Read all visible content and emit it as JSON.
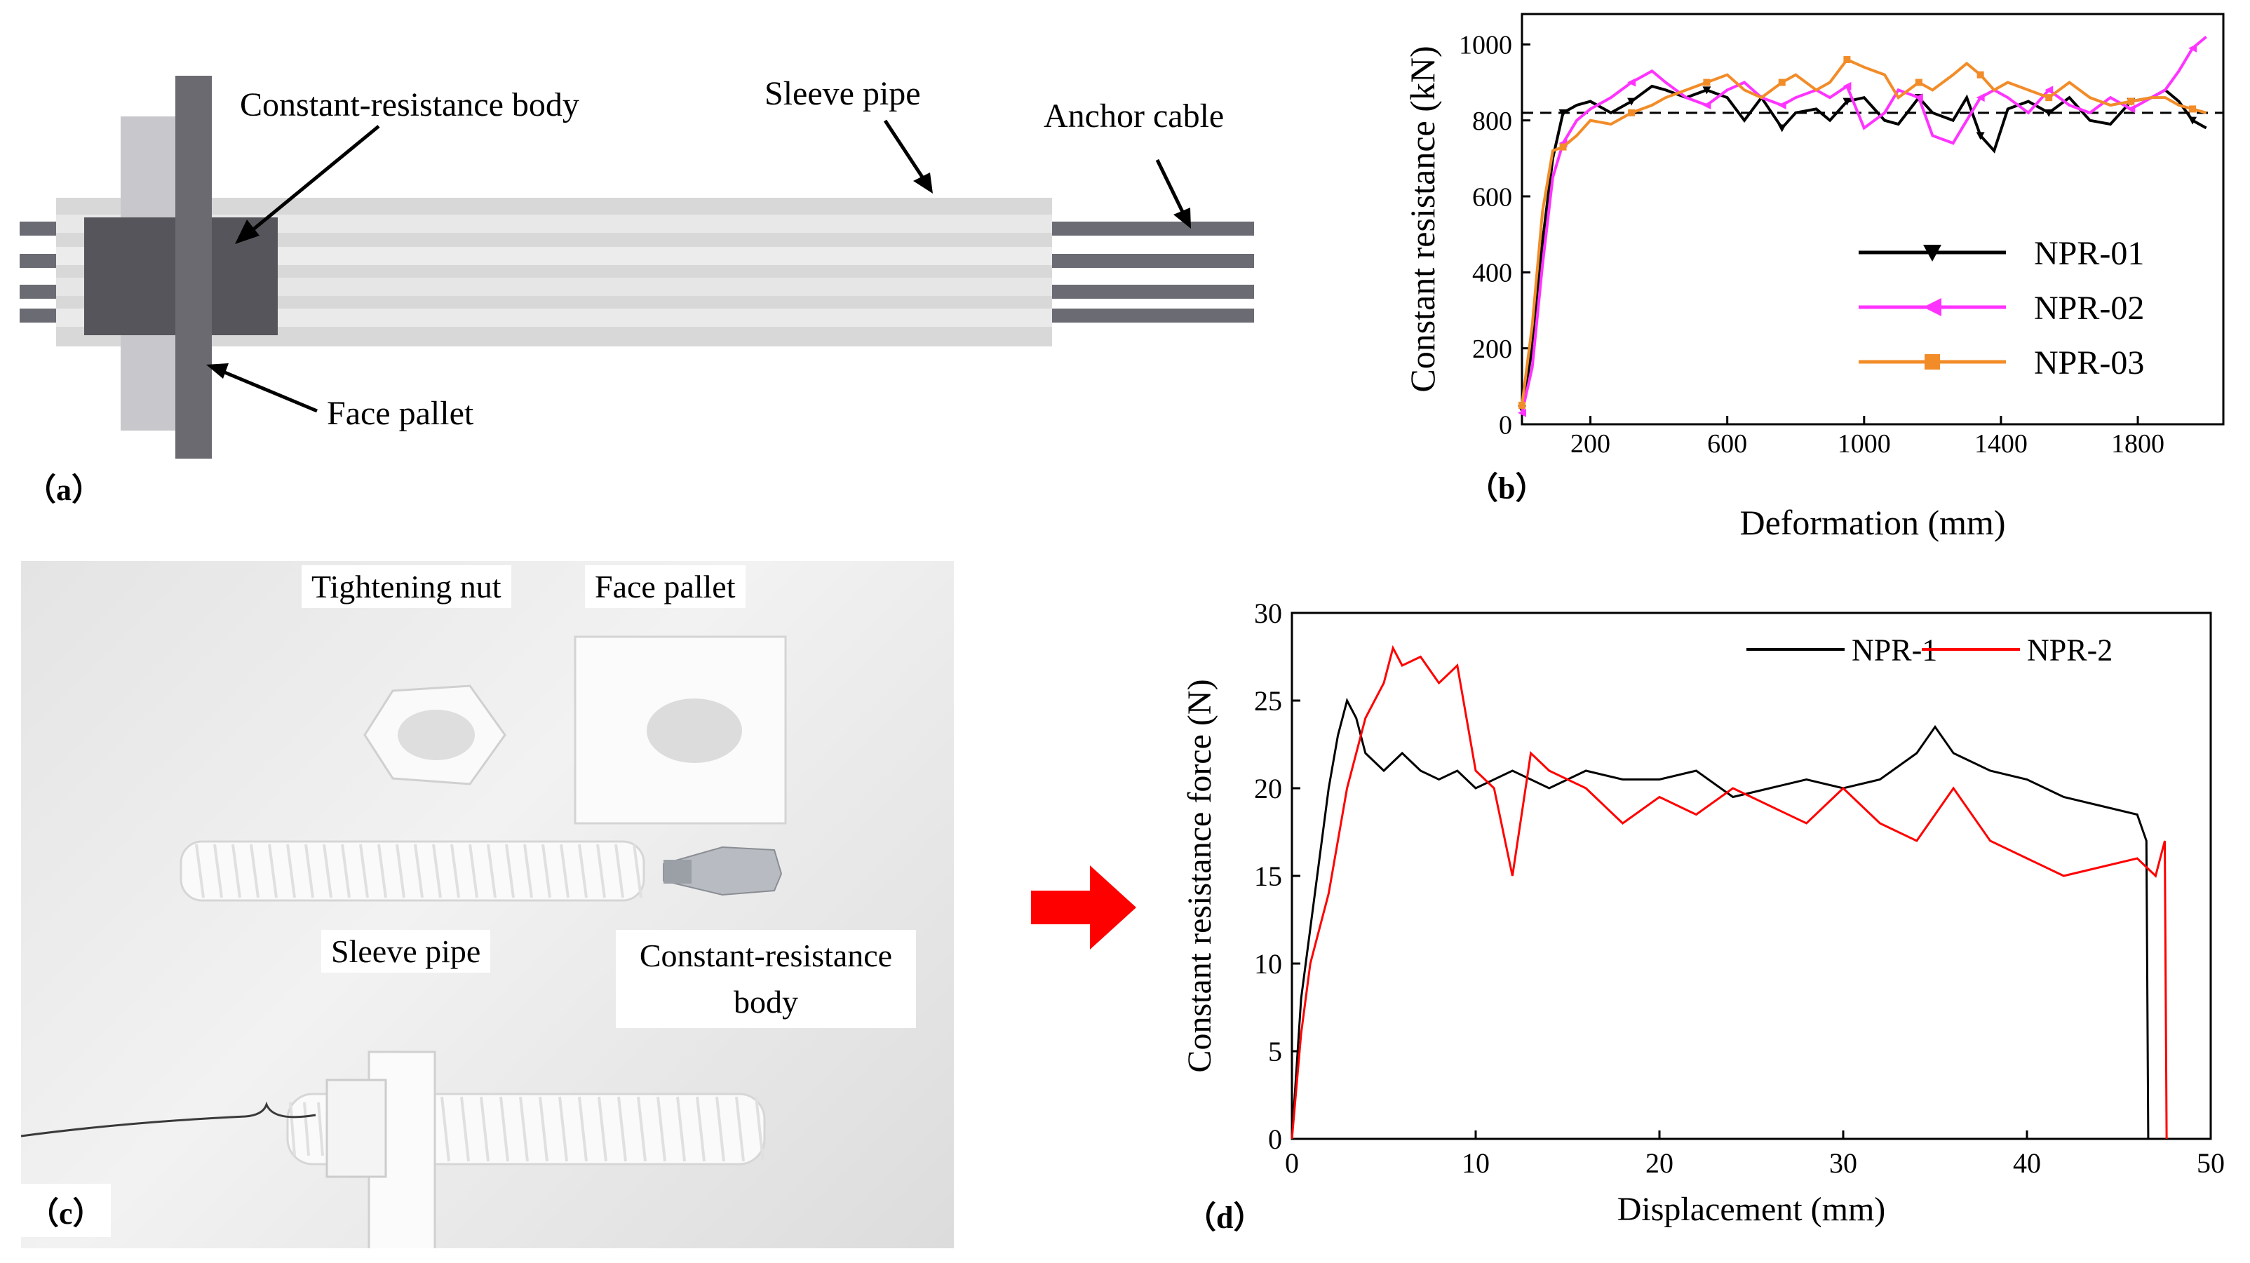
{
  "panel_a": {
    "tag": "（a）",
    "labels": {
      "body": "Constant-resistance body",
      "sleeve": "Sleeve pipe",
      "cable": "Anchor cable",
      "pallet": "Face pallet"
    }
  },
  "panel_b": {
    "tag": "（b）",
    "chart_data": {
      "type": "line",
      "xlabel": "Deformation (mm)",
      "ylabel": "Constant resistance (kN)",
      "xlim": [
        0,
        2050
      ],
      "ylim": [
        0,
        1080
      ],
      "xticks": [
        200,
        600,
        1000,
        1400,
        1800
      ],
      "yticks": [
        0,
        200,
        400,
        600,
        800,
        1000
      ],
      "reference_line": 820,
      "legend_position": "right",
      "series": [
        {
          "name": "NPR-01",
          "color": "#000000",
          "marker": "triangle-down",
          "x": [
            0,
            30,
            60,
            90,
            120,
            160,
            200,
            260,
            320,
            380,
            420,
            480,
            540,
            600,
            650,
            700,
            760,
            800,
            860,
            900,
            950,
            1000,
            1060,
            1100,
            1160,
            1200,
            1260,
            1300,
            1340,
            1380,
            1420,
            1480,
            1540,
            1600,
            1660,
            1720,
            1780,
            1840,
            1880,
            1920,
            1960,
            2000
          ],
          "y": [
            40,
            200,
            480,
            700,
            820,
            840,
            850,
            820,
            850,
            890,
            880,
            860,
            880,
            860,
            800,
            860,
            780,
            820,
            830,
            800,
            850,
            860,
            800,
            790,
            860,
            820,
            800,
            860,
            760,
            720,
            830,
            850,
            820,
            860,
            800,
            790,
            850,
            860,
            880,
            850,
            800,
            780
          ]
        },
        {
          "name": "NPR-02",
          "color": "#ff33ff",
          "marker": "triangle-left",
          "x": [
            0,
            30,
            60,
            90,
            120,
            160,
            200,
            260,
            320,
            380,
            420,
            480,
            540,
            600,
            650,
            700,
            760,
            800,
            860,
            900,
            950,
            1000,
            1060,
            1100,
            1160,
            1200,
            1260,
            1300,
            1340,
            1380,
            1420,
            1480,
            1540,
            1600,
            1660,
            1720,
            1780,
            1840,
            1880,
            1920,
            1960,
            2000
          ],
          "y": [
            30,
            150,
            420,
            650,
            740,
            800,
            830,
            860,
            900,
            930,
            900,
            860,
            840,
            880,
            900,
            860,
            840,
            860,
            880,
            860,
            890,
            780,
            820,
            880,
            860,
            760,
            740,
            800,
            860,
            880,
            860,
            820,
            880,
            840,
            820,
            860,
            830,
            860,
            880,
            930,
            990,
            1020
          ]
        },
        {
          "name": "NPR-03",
          "color": "#f28c28",
          "marker": "square",
          "x": [
            0,
            30,
            60,
            90,
            120,
            160,
            200,
            260,
            320,
            380,
            420,
            480,
            540,
            600,
            650,
            700,
            760,
            800,
            860,
            900,
            950,
            1000,
            1060,
            1100,
            1160,
            1200,
            1260,
            1300,
            1340,
            1380,
            1420,
            1480,
            1540,
            1600,
            1660,
            1720,
            1780,
            1840,
            1880,
            1920,
            1960,
            2000
          ],
          "y": [
            50,
            260,
            560,
            720,
            730,
            760,
            800,
            790,
            820,
            840,
            860,
            880,
            900,
            920,
            880,
            860,
            900,
            920,
            880,
            900,
            960,
            940,
            920,
            860,
            900,
            880,
            920,
            950,
            920,
            880,
            900,
            880,
            860,
            900,
            860,
            840,
            850,
            860,
            860,
            840,
            830,
            820
          ]
        }
      ]
    }
  },
  "panel_c": {
    "tag": "（c）",
    "labels": {
      "nut": "Tightening nut",
      "pallet": "Face pallet",
      "sleeve": "Sleeve pipe",
      "body_line1": "Constant-resistance",
      "body_line2": "body"
    }
  },
  "panel_d": {
    "tag": "（d）",
    "chart_data": {
      "type": "line",
      "xlabel": "Displacement (mm)",
      "ylabel": "Constant resistance force (N)",
      "xlim": [
        0,
        50
      ],
      "ylim": [
        0,
        30
      ],
      "xticks": [
        0,
        10,
        20,
        30,
        40,
        50
      ],
      "yticks": [
        0,
        5,
        10,
        15,
        20,
        25,
        30
      ],
      "legend_position": "top-right",
      "series": [
        {
          "name": "NPR-1",
          "color": "#000000",
          "x": [
            0,
            0.5,
            1,
            1.5,
            2,
            2.5,
            3,
            3.5,
            4,
            5,
            6,
            7,
            8,
            9,
            10,
            12,
            14,
            16,
            18,
            20,
            22,
            24,
            26,
            28,
            30,
            32,
            34,
            35,
            36,
            38,
            40,
            42,
            44,
            46,
            46.5,
            46.6
          ],
          "y": [
            0,
            8,
            12,
            16,
            20,
            23,
            25,
            24,
            22,
            21,
            22,
            21,
            20.5,
            21,
            20,
            21,
            20,
            21,
            20.5,
            20.5,
            21,
            19.5,
            20,
            20.5,
            20,
            20.5,
            22,
            23.5,
            22,
            21,
            20.5,
            19.5,
            19,
            18.5,
            17,
            0
          ]
        },
        {
          "name": "NPR-2",
          "color": "#ff0000",
          "x": [
            0,
            0.5,
            1,
            1.5,
            2,
            3,
            4,
            5,
            5.5,
            6,
            7,
            8,
            9,
            10,
            11,
            12,
            13,
            14,
            16,
            18,
            20,
            22,
            24,
            26,
            28,
            30,
            32,
            34,
            36,
            38,
            40,
            42,
            44,
            46,
            47,
            47.5,
            47.6
          ],
          "y": [
            0,
            6,
            10,
            12,
            14,
            20,
            24,
            26,
            28,
            27,
            27.5,
            26,
            27,
            21,
            20,
            15,
            22,
            21,
            20,
            18,
            19.5,
            18.5,
            20,
            19,
            18,
            20,
            18,
            17,
            20,
            17,
            16,
            15,
            15.5,
            16,
            15,
            17,
            0
          ]
        }
      ]
    }
  }
}
